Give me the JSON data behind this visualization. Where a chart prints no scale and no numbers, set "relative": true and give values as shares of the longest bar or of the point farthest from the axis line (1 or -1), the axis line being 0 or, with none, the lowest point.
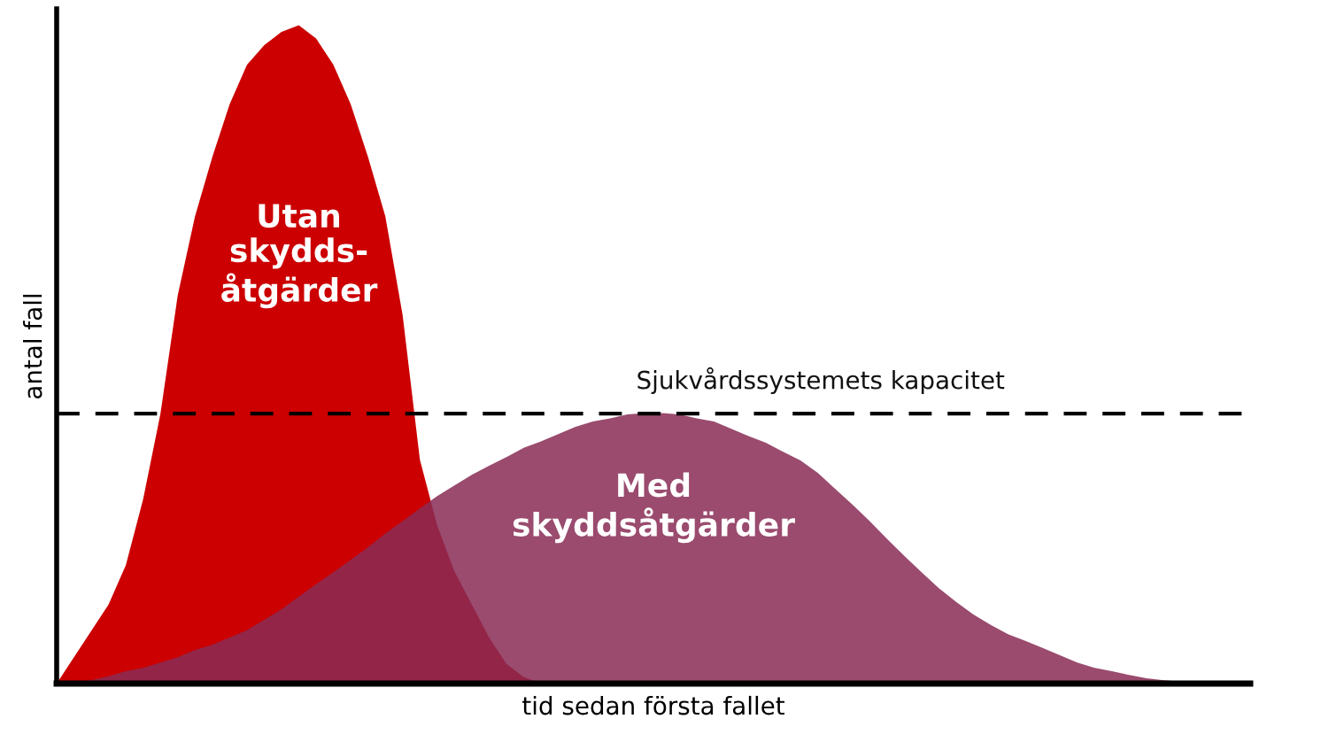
{
  "chart_data": {
    "type": "area",
    "relative": true,
    "xlabel": "tid sedan första fallet",
    "ylabel": "antal fall",
    "categories": [
      null,
      null,
      null,
      null,
      null,
      null,
      null,
      null,
      null,
      null,
      null,
      null,
      null,
      null,
      null,
      null,
      null,
      null,
      null,
      null,
      null,
      null,
      null,
      null,
      null,
      null,
      null,
      null,
      null,
      null,
      null,
      null,
      null,
      null,
      null,
      null,
      null,
      null,
      null,
      null,
      null,
      null,
      null,
      null,
      null,
      null,
      null,
      null,
      null,
      null,
      null,
      null,
      null,
      null,
      null,
      null,
      null,
      null,
      null,
      null,
      null,
      null,
      null,
      null,
      null,
      null,
      null,
      null,
      null,
      null
    ],
    "series": [
      {
        "name": "Utan\nskydds-\nåtgärder",
        "color": "#cc0000",
        "values": [
          0,
          0.04,
          0.08,
          0.12,
          0.18,
          0.28,
          0.41,
          0.59,
          0.71,
          0.8,
          0.88,
          0.94,
          0.97,
          0.99,
          1,
          0.98,
          0.94,
          0.88,
          0.8,
          0.71,
          0.56,
          0.34,
          0.24,
          0.17,
          0.12,
          0.07,
          0.03,
          0.01,
          0,
          0,
          0,
          0,
          0,
          0,
          0,
          0,
          0,
          0,
          0,
          0,
          0,
          0,
          0,
          0,
          0,
          0,
          0,
          0,
          0,
          0,
          0,
          0,
          0,
          0,
          0,
          0,
          0,
          0,
          0,
          0,
          0,
          0,
          0,
          0,
          0,
          0,
          0,
          0,
          0,
          0
        ]
      },
      {
        "name": "Med\nskyddsåtgärder",
        "color": "#882c55",
        "values": [
          0,
          0.003,
          0.005,
          0.011,
          0.019,
          0.024,
          0.032,
          0.04,
          0.051,
          0.059,
          0.07,
          0.081,
          0.097,
          0.113,
          0.132,
          0.151,
          0.169,
          0.188,
          0.207,
          0.228,
          0.247,
          0.266,
          0.285,
          0.301,
          0.317,
          0.331,
          0.344,
          0.358,
          0.368,
          0.379,
          0.39,
          0.398,
          0.403,
          0.409,
          0.411,
          0.411,
          0.409,
          0.403,
          0.398,
          0.387,
          0.376,
          0.366,
          0.352,
          0.339,
          0.32,
          0.296,
          0.272,
          0.247,
          0.22,
          0.194,
          0.169,
          0.145,
          0.124,
          0.105,
          0.089,
          0.075,
          0.065,
          0.054,
          0.043,
          0.032,
          0.024,
          0.019,
          0.013,
          0.008,
          0.005,
          0.003,
          0,
          0,
          0,
          0
        ]
      }
    ],
    "ref_lines": [
      {
        "axis": "y",
        "value": 0.41,
        "label": "Sjukvårdssystemets kapacitet",
        "color": "#000000",
        "line_style": "dashed"
      }
    ]
  }
}
